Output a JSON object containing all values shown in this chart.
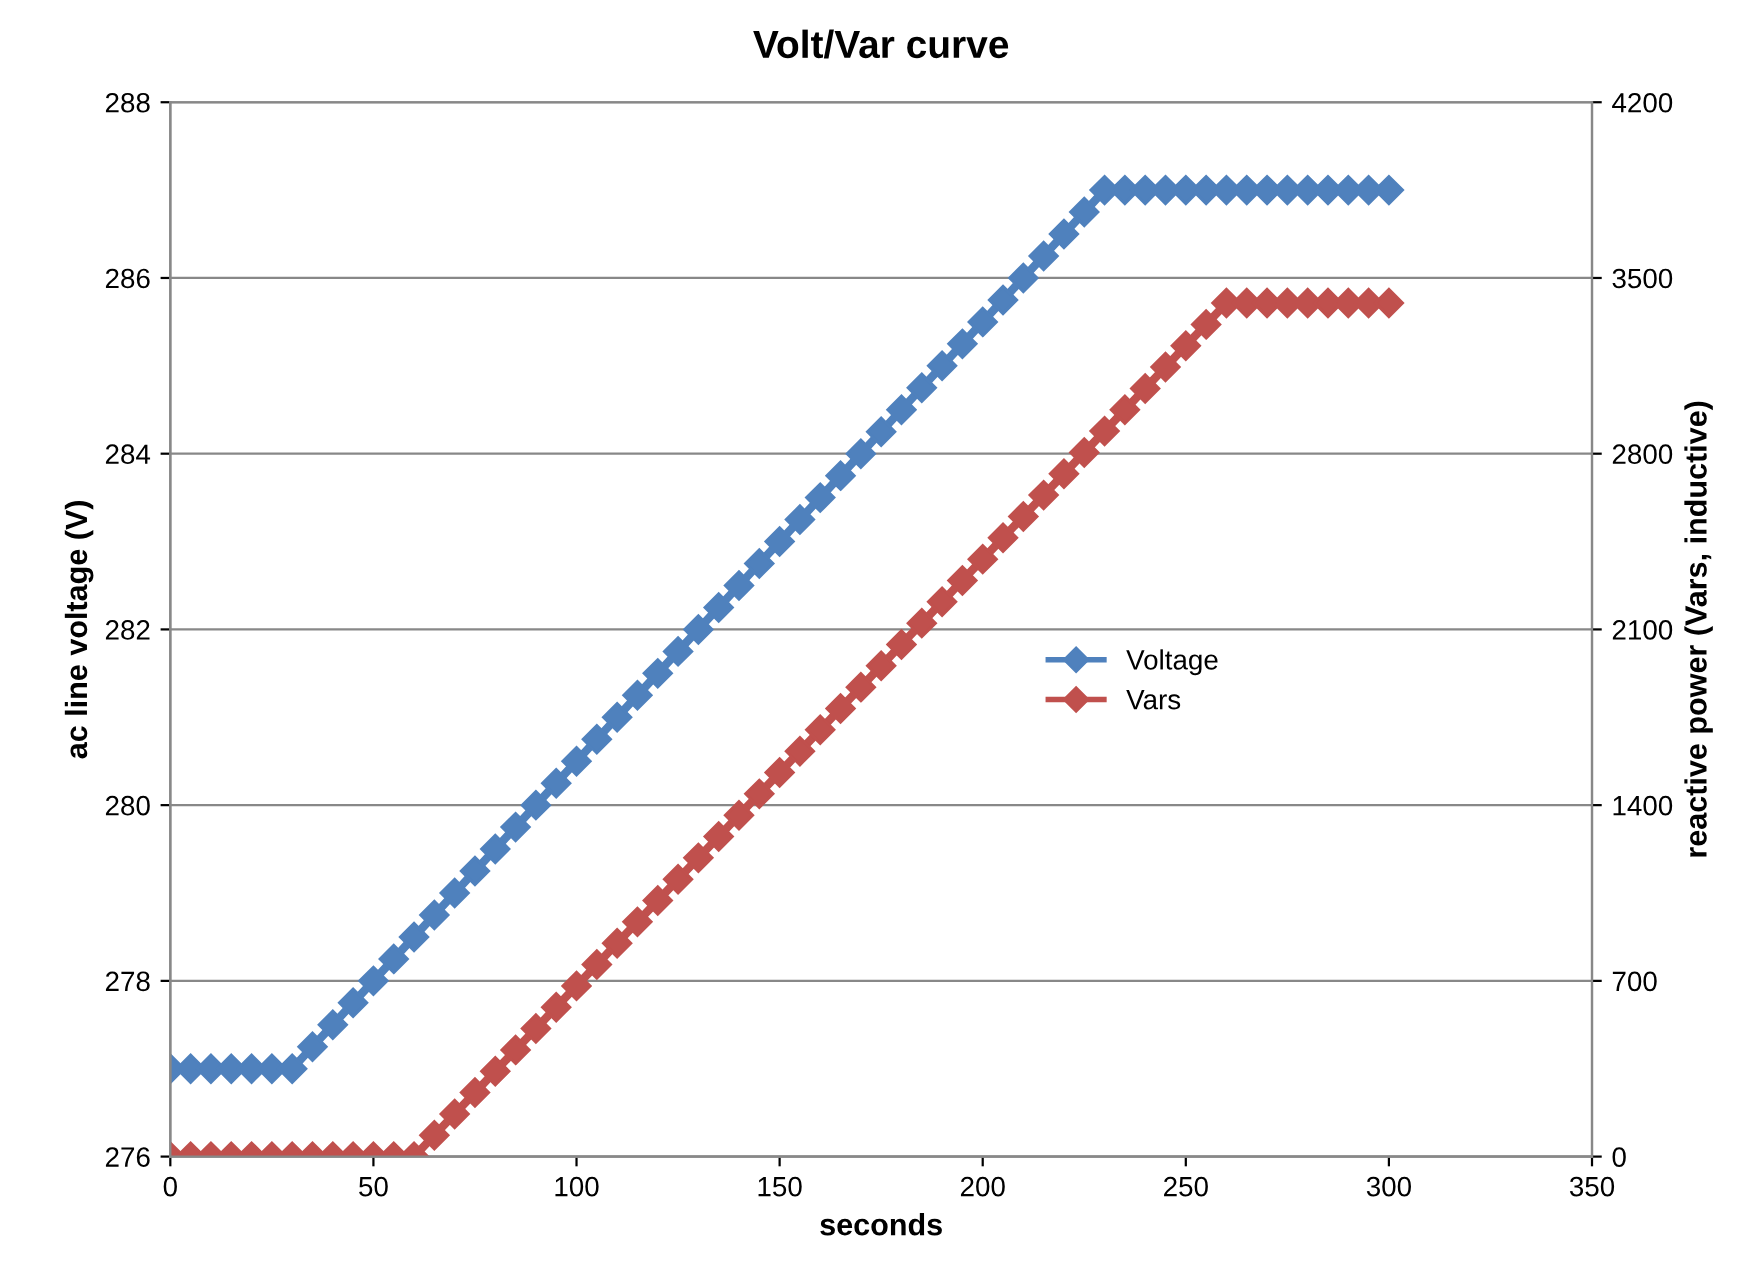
{
  "chart_data": {
    "type": "line",
    "title": "Volt/Var curve",
    "xlabel": "seconds",
    "ylabel": "ac line voltage (V)",
    "y2label": "reactive power (Vars, inductive)",
    "x": [
      0,
      5,
      10,
      15,
      20,
      25,
      30,
      35,
      40,
      45,
      50,
      55,
      60,
      65,
      70,
      75,
      80,
      85,
      90,
      95,
      100,
      105,
      110,
      115,
      120,
      125,
      130,
      135,
      140,
      145,
      150,
      155,
      160,
      165,
      170,
      175,
      180,
      185,
      190,
      195,
      200,
      205,
      210,
      215,
      220,
      225,
      230,
      235,
      240,
      245,
      250,
      255,
      260,
      265,
      270,
      275,
      280,
      285,
      290,
      295,
      300
    ],
    "series": [
      {
        "name": "Voltage",
        "color": "#4f81bd",
        "values": [
          277,
          277,
          277,
          277,
          277,
          277,
          277,
          277.25,
          277.5,
          277.75,
          278,
          278.25,
          278.5,
          278.75,
          279,
          279.25,
          279.5,
          279.75,
          280,
          280.25,
          280.5,
          280.75,
          281,
          281.25,
          281.5,
          281.75,
          282,
          282.25,
          282.5,
          282.75,
          283,
          283.25,
          283.5,
          283.75,
          284,
          284.25,
          284.5,
          284.75,
          285,
          285.25,
          285.5,
          285.75,
          286,
          286.25,
          286.5,
          286.75,
          287,
          287,
          287,
          287,
          287,
          287,
          287,
          287,
          287,
          287,
          287,
          287,
          287,
          287,
          287
        ]
      },
      {
        "name": "Vars",
        "color": "#c0504d",
        "axis": "y2",
        "values": [
          0,
          0,
          0,
          0,
          0,
          0,
          0,
          0,
          0,
          0,
          0,
          0,
          0,
          85,
          170,
          255,
          340,
          425,
          510,
          595,
          680,
          765,
          850,
          935,
          1020,
          1105,
          1190,
          1275,
          1360,
          1445,
          1530,
          1615,
          1700,
          1785,
          1870,
          1955,
          2040,
          2125,
          2210,
          2295,
          2380,
          2465,
          2550,
          2635,
          2720,
          2805,
          2890,
          2975,
          3060,
          3145,
          3230,
          3315,
          3400,
          3400,
          3400,
          3400,
          3400,
          3400,
          3400,
          3400,
          3400
        ]
      }
    ],
    "xlim": [
      0,
      350
    ],
    "xticks": [
      0,
      50,
      100,
      150,
      200,
      250,
      300,
      350
    ],
    "ylim": [
      276,
      288
    ],
    "yticks": [
      276,
      278,
      280,
      282,
      284,
      286,
      288
    ],
    "y2lim": [
      0,
      4200
    ],
    "y2ticks": [
      0,
      700,
      1400,
      2100,
      2800,
      3500,
      4200
    ],
    "grid": "y",
    "legend": "right",
    "marker": "diamond",
    "line_style": "solid"
  }
}
